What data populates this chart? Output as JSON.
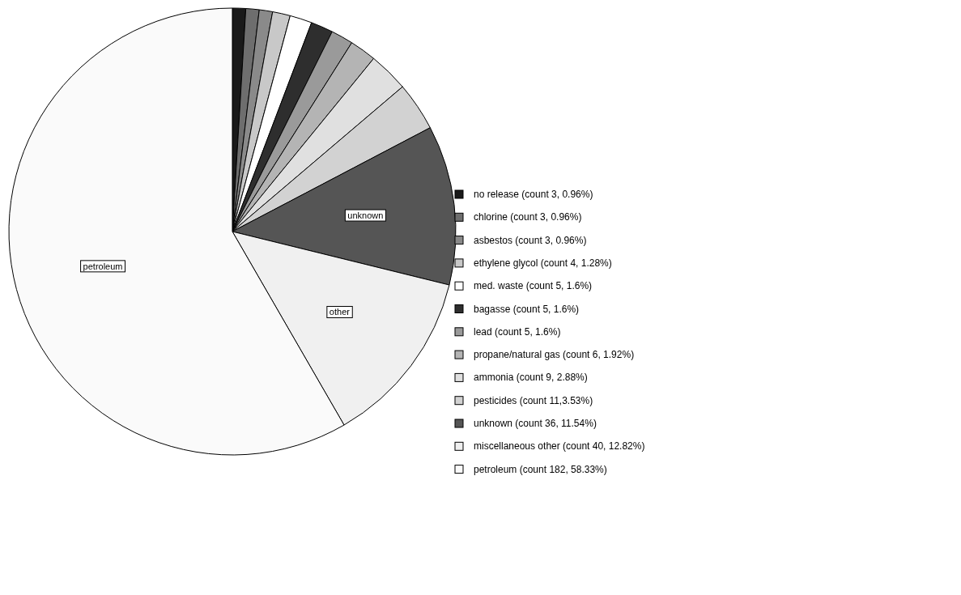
{
  "chart_data": {
    "type": "pie",
    "categories": [
      "no release (count 3, 0.96%)",
      "chlorine (count 3, 0.96%)",
      "asbestos (count 3, 0.96%)",
      "ethylene glycol (count 4, 1.28%)",
      "med. waste (count 5, 1.6%)",
      "bagasse (count 5, 1.6%)",
      "lead (count 5, 1.6%)",
      "propane/natural gas (count 6, 1.92%)",
      "ammonia (count 9, 2.88%)",
      "pesticides (count 11,3.53%)",
      "unknown (count 36, 11.54%)",
      "miscellaneous other (count 40, 12.82%)",
      "petroleum (count 182, 58.33%)"
    ],
    "values": [
      3,
      3,
      3,
      4,
      5,
      5,
      5,
      6,
      9,
      11,
      36,
      40,
      182
    ],
    "colors": [
      "#1a1a1a",
      "#6e6e6e",
      "#8a8a8a",
      "#c8c8c8",
      "#ffffff",
      "#2e2e2e",
      "#9a9a9a",
      "#b4b4b4",
      "#e0e0e0",
      "#d2d2d2",
      "#555555",
      "#f0f0f0",
      "#fafafa"
    ],
    "annotations": [
      {
        "text": "unknown",
        "x": "unknown (count 36, 11.54%)"
      },
      {
        "text": "other",
        "x": "miscellaneous other (count 40, 12.82%)"
      },
      {
        "text": "petroleum",
        "x": "petroleum (count 182, 58.33%)"
      }
    ],
    "legend": "right"
  }
}
